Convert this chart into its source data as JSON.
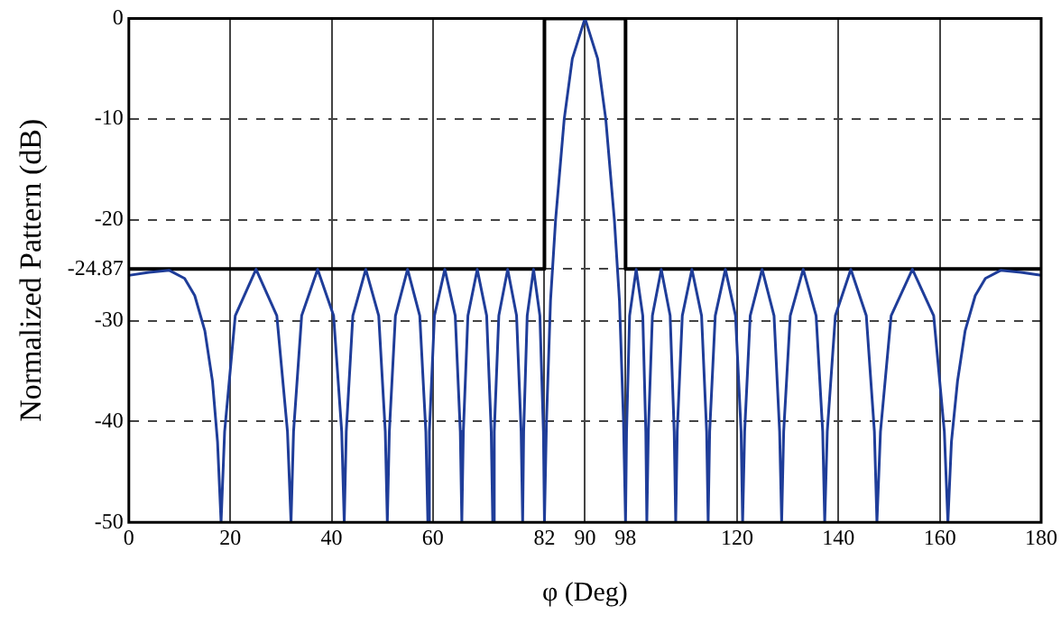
{
  "chart_data": {
    "type": "line",
    "xlabel": "φ (Deg)",
    "ylabel": "Normalized Pattern (dB)",
    "xlim": [
      0,
      180
    ],
    "ylim": [
      -50,
      0
    ],
    "xticks": [
      0,
      20,
      40,
      60,
      82,
      90,
      98,
      120,
      140,
      160,
      180
    ],
    "yticks": [
      0,
      -10,
      -20,
      -24.87,
      -30,
      -40,
      -50
    ],
    "grid": true,
    "legend": false,
    "marker": "none",
    "line_style": "solid",
    "series": [
      {
        "color": "#1f3d99",
        "x": [
          0,
          4,
          8,
          11,
          13,
          15,
          16.5,
          17.5,
          18.2,
          18.9,
          21.0,
          25.1,
          29.2,
          31.3,
          32,
          32.5,
          34.1,
          37.25,
          40.4,
          42.0,
          42.5,
          42.9,
          44.2,
          46.75,
          49.3,
          50.6,
          51,
          51.4,
          52.6,
          55,
          57.4,
          58.6,
          59,
          59.3,
          60.3,
          62.35,
          64.4,
          65.4,
          65.7,
          66.0,
          66.9,
          68.75,
          70.6,
          71.5,
          71.8,
          72.1,
          73.0,
          74.75,
          76.5,
          77.4,
          77.7,
          77.9,
          78.6,
          79.85,
          81.1,
          81.8,
          82,
          82.4,
          83.2,
          84.2,
          85.9,
          87.5,
          90,
          92.5,
          94.1,
          95.8,
          96.8,
          97.6,
          98,
          98.2,
          98.8,
          100.1,
          101.4,
          102.0,
          102.2,
          102.5,
          103.3,
          105.05,
          106.8,
          107.6,
          107.9,
          108.2,
          109.2,
          111.1,
          113.0,
          114.0,
          114.3,
          114.6,
          115.7,
          117.7,
          119.7,
          120.8,
          121.1,
          121.5,
          122.6,
          124.95,
          127.3,
          128.4,
          128.8,
          129.2,
          130.5,
          133.05,
          135.6,
          136.9,
          137.3,
          137.8,
          139.4,
          142.45,
          145.5,
          147.1,
          147.6,
          148.3,
          150.4,
          154.6,
          158.8,
          160.9,
          161.6,
          162.3,
          163.5,
          165,
          167,
          169,
          172,
          176,
          180
        ],
        "values": [
          -25.5,
          -25.2,
          -25.0,
          -25.8,
          -27.5,
          -31,
          -36,
          -42,
          -50,
          -41,
          -29.5,
          -24.9,
          -29.5,
          -41,
          -50,
          -41,
          -29.5,
          -24.9,
          -29.5,
          -41,
          -50,
          -41,
          -29.5,
          -24.9,
          -29.5,
          -41,
          -50,
          -41,
          -29.5,
          -24.9,
          -29.5,
          -41,
          -50,
          -41,
          -29.5,
          -24.9,
          -29.5,
          -41,
          -50,
          -41,
          -29.5,
          -24.9,
          -29.5,
          -41,
          -50,
          -41,
          -29.5,
          -24.9,
          -29.5,
          -41,
          -50,
          -41,
          -29.5,
          -24.9,
          -29.5,
          -41,
          -50,
          -40,
          -28,
          -20,
          -10,
          -4,
          0,
          -4,
          -10,
          -20,
          -28,
          -40,
          -50,
          -41,
          -29.5,
          -24.9,
          -29.5,
          -41,
          -50,
          -41,
          -29.5,
          -24.9,
          -29.5,
          -41,
          -50,
          -41,
          -29.5,
          -24.9,
          -29.5,
          -41,
          -50,
          -41,
          -29.5,
          -24.9,
          -29.5,
          -41,
          -50,
          -41,
          -29.5,
          -24.9,
          -29.5,
          -41,
          -50,
          -41,
          -29.5,
          -24.9,
          -29.5,
          -41,
          -50,
          -41,
          -29.5,
          -24.9,
          -29.5,
          -41,
          -50,
          -41,
          -29.5,
          -24.9,
          -29.5,
          -41,
          -50,
          -42,
          -36,
          -31,
          -27.5,
          -25.8,
          -25.0,
          -25.2,
          -25.5
        ]
      },
      {
        "color": "#000000",
        "x": [
          0,
          82,
          82,
          98,
          98,
          180
        ],
        "values": [
          -24.87,
          -24.87,
          0,
          0,
          -24.87,
          -24.87
        ]
      }
    ]
  }
}
